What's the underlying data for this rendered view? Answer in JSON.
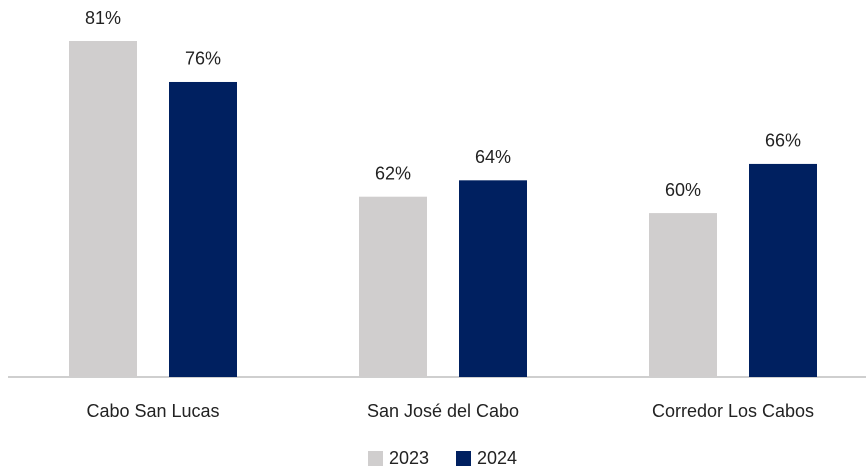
{
  "chart_data": {
    "type": "bar",
    "categories": [
      "Cabo San Lucas",
      "San José del Cabo",
      "Corredor Los Cabos"
    ],
    "series": [
      {
        "name": "2023",
        "color": "#d0cece",
        "values": [
          81,
          62,
          60
        ],
        "value_labels": [
          "81%",
          "62%",
          "60%"
        ]
      },
      {
        "name": "2024",
        "color": "#002060",
        "values": [
          76,
          64,
          66
        ],
        "value_labels": [
          "76%",
          "64%",
          "66%"
        ]
      }
    ],
    "ylim": [
      40,
      81
    ]
  }
}
